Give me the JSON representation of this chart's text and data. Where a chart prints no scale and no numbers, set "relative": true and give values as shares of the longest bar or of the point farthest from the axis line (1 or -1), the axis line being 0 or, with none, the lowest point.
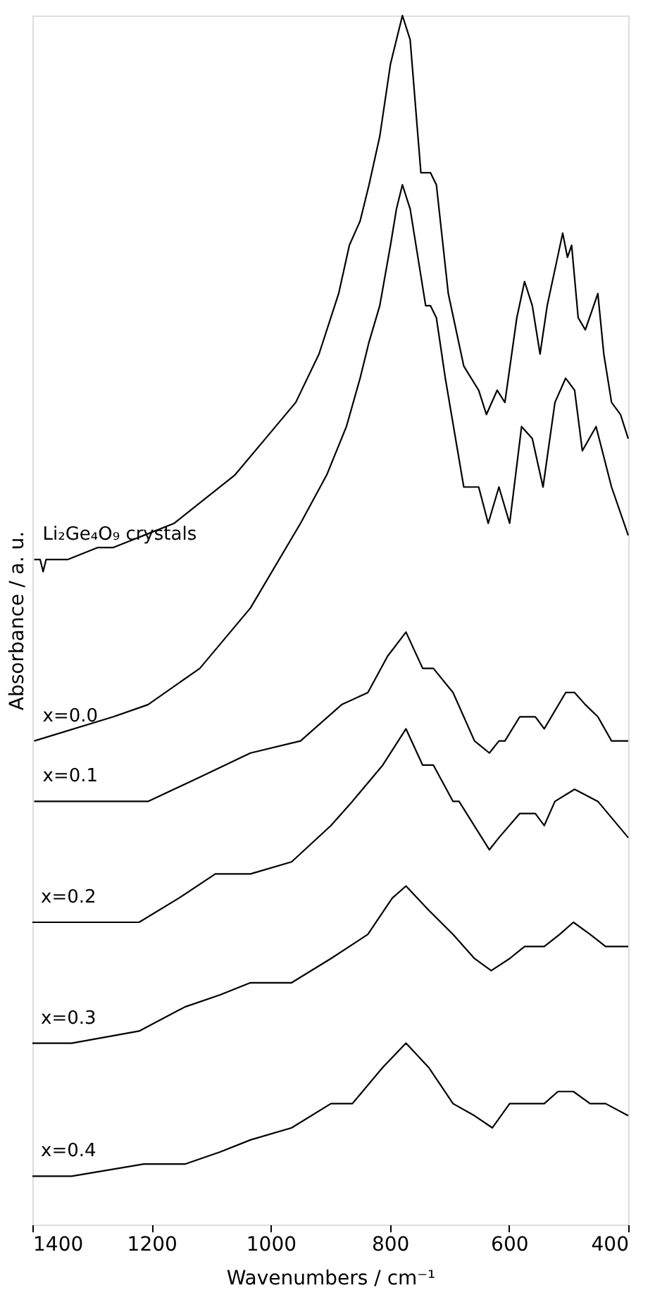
{
  "chart_data": {
    "type": "line",
    "relative": true,
    "xlabel": "Wavenumbers / cm⁻¹",
    "ylabel": "Absorbance / a. u.",
    "xlim": [
      1400,
      400
    ],
    "xticks": [
      1400,
      1200,
      1000,
      800,
      600,
      400
    ],
    "tick_labels": "x",
    "series": [
      {
        "name": "Li₂Ge₄O₉ crystals",
        "color": "#000000",
        "x": [
          1397,
          1387,
          1382,
          1377,
          1341,
          1290,
          1264,
          1213,
          1162,
          1111,
          1060,
          1009,
          958,
          919,
          886,
          868,
          850,
          835,
          817,
          799,
          779,
          766,
          748,
          732,
          722,
          702,
          676,
          651,
          638,
          620,
          607,
          587,
          574,
          561,
          548,
          536,
          523,
          510,
          502,
          495,
          484,
          472,
          451,
          441,
          428,
          413,
          400
        ],
        "values": [
          0.55,
          0.55,
          0.54,
          0.55,
          0.55,
          0.56,
          0.56,
          0.57,
          0.58,
          0.6,
          0.62,
          0.65,
          0.68,
          0.72,
          0.77,
          0.81,
          0.83,
          0.86,
          0.9,
          0.96,
          1.0,
          0.98,
          0.87,
          0.87,
          0.86,
          0.77,
          0.71,
          0.69,
          0.67,
          0.69,
          0.68,
          0.75,
          0.78,
          0.76,
          0.72,
          0.76,
          0.79,
          0.82,
          0.8,
          0.81,
          0.75,
          0.74,
          0.77,
          0.72,
          0.68,
          0.67,
          0.65
        ]
      },
      {
        "name": "x=0.0",
        "color": "#000000",
        "x": [
          1397,
          1264,
          1206,
          1119,
          1034,
          950,
          906,
          873,
          850,
          835,
          817,
          799,
          789,
          779,
          766,
          753,
          740,
          732,
          722,
          707,
          676,
          651,
          635,
          617,
          599,
          579,
          561,
          543,
          523,
          505,
          490,
          477,
          454,
          428,
          400
        ],
        "values": [
          0.4,
          0.42,
          0.43,
          0.46,
          0.51,
          0.58,
          0.62,
          0.66,
          0.7,
          0.73,
          0.76,
          0.81,
          0.84,
          0.86,
          0.84,
          0.8,
          0.76,
          0.76,
          0.75,
          0.7,
          0.61,
          0.61,
          0.58,
          0.61,
          0.58,
          0.66,
          0.65,
          0.61,
          0.68,
          0.7,
          0.69,
          0.64,
          0.66,
          0.61,
          0.57
        ]
      },
      {
        "name": "x=0.1",
        "color": "#000000",
        "x": [
          1397,
          1206,
          1119,
          1034,
          950,
          881,
          837,
          804,
          773,
          745,
          727,
          694,
          658,
          633,
          617,
          607,
          582,
          556,
          541,
          505,
          490,
          472,
          451,
          428,
          400
        ],
        "values": [
          0.35,
          0.35,
          0.37,
          0.39,
          0.4,
          0.43,
          0.44,
          0.47,
          0.49,
          0.46,
          0.46,
          0.44,
          0.4,
          0.39,
          0.4,
          0.4,
          0.42,
          0.42,
          0.41,
          0.44,
          0.44,
          0.43,
          0.42,
          0.4,
          0.4
        ]
      },
      {
        "name": "x=0.2",
        "color": "#000000",
        "x": [
          1400,
          1334,
          1221,
          1154,
          1093,
          1034,
          965,
          899,
          863,
          812,
          773,
          745,
          727,
          694,
          684,
          633,
          617,
          582,
          556,
          541,
          523,
          490,
          451,
          400
        ],
        "values": [
          0.25,
          0.25,
          0.25,
          0.27,
          0.29,
          0.29,
          0.3,
          0.33,
          0.35,
          0.38,
          0.41,
          0.38,
          0.38,
          0.35,
          0.35,
          0.31,
          0.32,
          0.34,
          0.34,
          0.33,
          0.35,
          0.36,
          0.35,
          0.32
        ]
      },
      {
        "name": "x=0.3",
        "color": "#000000",
        "x": [
          1400,
          1334,
          1221,
          1144,
          1085,
          1034,
          965,
          899,
          837,
          796,
          773,
          735,
          694,
          658,
          630,
          599,
          574,
          556,
          541,
          515,
          492,
          464,
          438,
          400
        ],
        "values": [
          0.15,
          0.15,
          0.16,
          0.18,
          0.19,
          0.2,
          0.2,
          0.22,
          0.24,
          0.27,
          0.28,
          0.26,
          0.24,
          0.22,
          0.21,
          0.22,
          0.23,
          0.23,
          0.23,
          0.24,
          0.25,
          0.24,
          0.23,
          0.23
        ]
      },
      {
        "name": "x=0.4",
        "color": "#000000",
        "x": [
          1400,
          1334,
          1213,
          1144,
          1085,
          1034,
          965,
          899,
          863,
          812,
          773,
          735,
          694,
          658,
          628,
          599,
          561,
          541,
          518,
          492,
          464,
          438,
          400
        ],
        "values": [
          0.04,
          0.04,
          0.05,
          0.05,
          0.06,
          0.07,
          0.08,
          0.1,
          0.1,
          0.13,
          0.15,
          0.13,
          0.1,
          0.09,
          0.08,
          0.1,
          0.1,
          0.1,
          0.11,
          0.11,
          0.1,
          0.1,
          0.09
        ]
      }
    ]
  }
}
